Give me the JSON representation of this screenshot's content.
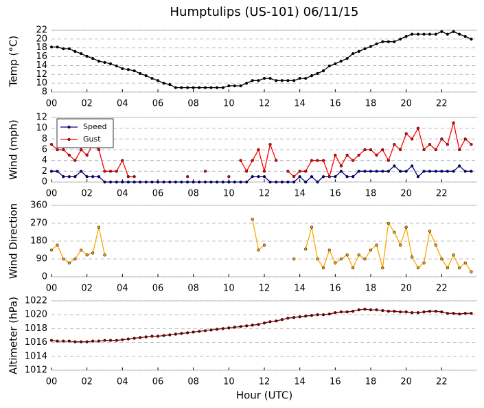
{
  "chart_data": [
    {
      "type": "line",
      "title": "Humptulips (US-101) 06/11/15",
      "ylabel": "Temp (°C)",
      "x": [
        0,
        0.33,
        0.67,
        1,
        1.33,
        1.67,
        2,
        2.33,
        2.67,
        3,
        3.33,
        3.67,
        4,
        4.33,
        4.67,
        5,
        5.33,
        5.67,
        6,
        6.33,
        6.67,
        7,
        7.33,
        7.67,
        8,
        8.33,
        8.67,
        9,
        9.33,
        9.67,
        10,
        10.33,
        10.67,
        11,
        11.33,
        11.67,
        12,
        12.33,
        12.67,
        13,
        13.33,
        13.67,
        14,
        14.33,
        14.67,
        15,
        15.33,
        15.67,
        16,
        16.33,
        16.67,
        17,
        17.33,
        17.67,
        18,
        18.33,
        18.67,
        19,
        19.33,
        19.67,
        20,
        20.33,
        20.67,
        21,
        21.33,
        21.67,
        22,
        22.33,
        22.67,
        23,
        23.33,
        23.67
      ],
      "series": [
        {
          "name": "Temp",
          "color": "#000000",
          "values": [
            18.2,
            18.2,
            17.8,
            17.8,
            17.2,
            16.7,
            16.1,
            15.6,
            15.0,
            14.7,
            14.4,
            13.9,
            13.3,
            13.1,
            12.8,
            12.2,
            11.7,
            11.1,
            10.6,
            10.0,
            9.7,
            9.0,
            9.0,
            9.0,
            9.0,
            9.0,
            9.0,
            9.0,
            9.0,
            9.0,
            9.4,
            9.4,
            9.4,
            10.0,
            10.6,
            10.6,
            11.1,
            11.1,
            10.6,
            10.6,
            10.6,
            10.6,
            11.1,
            11.1,
            11.7,
            12.2,
            12.8,
            13.9,
            14.4,
            15.0,
            15.6,
            16.7,
            17.2,
            17.8,
            18.3,
            18.9,
            19.4,
            19.4,
            19.4,
            20.0,
            20.6,
            21.1,
            21.1,
            21.1,
            21.1,
            21.1,
            21.7,
            21.1,
            21.7,
            21.1,
            20.6,
            20.0
          ]
        }
      ],
      "xlim": [
        0,
        24
      ],
      "xticks": [
        {
          "value": 0,
          "label": "00"
        },
        {
          "value": 2,
          "label": "02"
        },
        {
          "value": 4,
          "label": "04"
        },
        {
          "value": 6,
          "label": "06"
        },
        {
          "value": 8,
          "label": "08"
        },
        {
          "value": 10,
          "label": "10"
        },
        {
          "value": 12,
          "label": "12"
        },
        {
          "value": 14,
          "label": "14"
        },
        {
          "value": 16,
          "label": "16"
        },
        {
          "value": 18,
          "label": "18"
        },
        {
          "value": 20,
          "label": "20"
        },
        {
          "value": 22,
          "label": "22"
        }
      ],
      "ylim": [
        8,
        22
      ],
      "yticks": [
        8,
        10,
        12,
        14,
        16,
        18,
        20,
        22
      ],
      "grid": true
    },
    {
      "type": "line",
      "ylabel": "Wind (mph)",
      "legend": "upper left",
      "x": [
        0,
        0.33,
        0.67,
        1,
        1.33,
        1.67,
        2,
        2.33,
        2.67,
        3,
        3.33,
        3.67,
        4,
        4.33,
        4.67,
        5,
        5.33,
        5.67,
        6,
        6.33,
        6.67,
        7,
        7.33,
        7.67,
        8,
        8.33,
        8.67,
        9,
        9.33,
        9.67,
        10,
        10.33,
        10.67,
        11,
        11.33,
        11.67,
        12,
        12.33,
        12.67,
        13,
        13.33,
        13.67,
        14,
        14.33,
        14.67,
        15,
        15.33,
        15.67,
        16,
        16.33,
        16.67,
        17,
        17.33,
        17.67,
        18,
        18.33,
        18.67,
        19,
        19.33,
        19.67,
        20,
        20.33,
        20.67,
        21,
        21.33,
        21.67,
        22,
        22.33,
        22.67,
        23,
        23.33,
        23.67
      ],
      "series": [
        {
          "name": "Speed",
          "color": "#00008b",
          "values": [
            2,
            2,
            1,
            1,
            1,
            2,
            1,
            1,
            1,
            0,
            0,
            0,
            0,
            0,
            0,
            0,
            0,
            0,
            0,
            0,
            0,
            0,
            0,
            0,
            0,
            0,
            0,
            0,
            0,
            0,
            0,
            0,
            0,
            0,
            1,
            1,
            1,
            0,
            0,
            0,
            0,
            0,
            1,
            0,
            1,
            0,
            1,
            1,
            1,
            2,
            1,
            1,
            2,
            2,
            2,
            2,
            2,
            2,
            3,
            2,
            2,
            3,
            1,
            2,
            2,
            2,
            2,
            2,
            2,
            3,
            2,
            2
          ]
        },
        {
          "name": "Gust",
          "color": "#ff0000",
          "values": [
            7,
            6,
            6,
            5,
            4,
            6,
            5,
            7,
            6,
            2,
            2,
            2,
            4,
            1,
            1,
            null,
            null,
            null,
            null,
            null,
            null,
            null,
            null,
            1,
            null,
            null,
            2,
            null,
            null,
            null,
            1,
            null,
            4,
            2,
            4,
            6,
            2,
            7,
            4,
            null,
            2,
            1,
            2,
            2,
            4,
            4,
            4,
            1,
            5,
            3,
            5,
            4,
            5,
            6,
            6,
            5,
            6,
            4,
            7,
            6,
            9,
            8,
            10,
            6,
            7,
            6,
            8,
            7,
            11,
            6,
            8,
            7
          ]
        }
      ],
      "xlim": [
        0,
        24
      ],
      "xticks": [
        {
          "value": 0,
          "label": "00"
        },
        {
          "value": 2,
          "label": "02"
        },
        {
          "value": 4,
          "label": "04"
        },
        {
          "value": 6,
          "label": "06"
        },
        {
          "value": 8,
          "label": "08"
        },
        {
          "value": 10,
          "label": "10"
        },
        {
          "value": 12,
          "label": "12"
        },
        {
          "value": 14,
          "label": "14"
        },
        {
          "value": 16,
          "label": "16"
        },
        {
          "value": 18,
          "label": "18"
        },
        {
          "value": 20,
          "label": "20"
        },
        {
          "value": 22,
          "label": "22"
        }
      ],
      "ylim": [
        0,
        12
      ],
      "yticks": [
        0,
        2,
        4,
        6,
        8,
        10,
        12
      ],
      "grid": true
    },
    {
      "type": "line",
      "ylabel": "Wind Direction",
      "x": [
        0,
        0.33,
        0.67,
        1,
        1.33,
        1.67,
        2,
        2.33,
        2.67,
        3,
        3.33,
        3.67,
        4,
        4.33,
        4.67,
        5,
        5.33,
        5.67,
        6,
        6.33,
        6.67,
        7,
        7.33,
        7.67,
        8,
        8.33,
        8.67,
        9,
        9.33,
        9.67,
        10,
        10.33,
        10.67,
        11,
        11.33,
        11.67,
        12,
        12.33,
        12.67,
        13,
        13.33,
        13.67,
        14,
        14.33,
        14.67,
        15,
        15.33,
        15.67,
        16,
        16.33,
        16.67,
        17,
        17.33,
        17.67,
        18,
        18.33,
        18.67,
        19,
        19.33,
        19.67,
        20,
        20.33,
        20.67,
        21,
        21.33,
        21.67,
        22,
        22.33,
        22.67,
        23,
        23.33,
        23.67
      ],
      "series": [
        {
          "name": "Direction",
          "color": "#ffa500",
          "values": [
            135,
            160,
            90,
            70,
            90,
            135,
            110,
            120,
            250,
            110,
            null,
            null,
            null,
            null,
            null,
            null,
            null,
            null,
            null,
            null,
            null,
            null,
            null,
            null,
            null,
            null,
            null,
            null,
            null,
            null,
            null,
            null,
            null,
            null,
            290,
            135,
            160,
            null,
            null,
            null,
            null,
            90,
            null,
            140,
            250,
            90,
            45,
            135,
            70,
            90,
            110,
            45,
            110,
            90,
            135,
            160,
            45,
            270,
            225,
            160,
            250,
            100,
            45,
            70,
            230,
            160,
            90,
            45,
            110,
            45,
            70,
            25
          ]
        }
      ],
      "xlim": [
        0,
        24
      ],
      "xticks": [
        {
          "value": 0,
          "label": "00"
        },
        {
          "value": 2,
          "label": "02"
        },
        {
          "value": 4,
          "label": "04"
        },
        {
          "value": 6,
          "label": "06"
        },
        {
          "value": 8,
          "label": "08"
        },
        {
          "value": 10,
          "label": "10"
        },
        {
          "value": 12,
          "label": "12"
        },
        {
          "value": 14,
          "label": "14"
        },
        {
          "value": 16,
          "label": "16"
        },
        {
          "value": 18,
          "label": "18"
        },
        {
          "value": 20,
          "label": "20"
        },
        {
          "value": 22,
          "label": "22"
        }
      ],
      "ylim": [
        0,
        360
      ],
      "yticks": [
        0,
        90,
        180,
        270,
        360
      ],
      "grid": true
    },
    {
      "type": "line",
      "ylabel": "Altimeter (hPa)",
      "xlabel": "Hour (UTC)",
      "x": [
        0,
        0.33,
        0.67,
        1,
        1.33,
        1.67,
        2,
        2.33,
        2.67,
        3,
        3.33,
        3.67,
        4,
        4.33,
        4.67,
        5,
        5.33,
        5.67,
        6,
        6.33,
        6.67,
        7,
        7.33,
        7.67,
        8,
        8.33,
        8.67,
        9,
        9.33,
        9.67,
        10,
        10.33,
        10.67,
        11,
        11.33,
        11.67,
        12,
        12.33,
        12.67,
        13,
        13.33,
        13.67,
        14,
        14.33,
        14.67,
        15,
        15.33,
        15.67,
        16,
        16.33,
        16.67,
        17,
        17.33,
        17.67,
        18,
        18.33,
        18.67,
        19,
        19.33,
        19.67,
        20,
        20.33,
        20.67,
        21,
        21.33,
        21.67,
        22,
        22.33,
        22.67,
        23,
        23.33,
        23.67
      ],
      "series": [
        {
          "name": "Altimeter",
          "color": "#8b0000",
          "values": [
            1016.3,
            1016.2,
            1016.2,
            1016.2,
            1016.1,
            1016.1,
            1016.1,
            1016.2,
            1016.2,
            1016.3,
            1016.3,
            1016.3,
            1016.4,
            1016.5,
            1016.6,
            1016.7,
            1016.8,
            1016.9,
            1016.9,
            1017.0,
            1017.1,
            1017.2,
            1017.3,
            1017.4,
            1017.5,
            1017.6,
            1017.7,
            1017.8,
            1017.9,
            1018.0,
            1018.1,
            1018.2,
            1018.3,
            1018.4,
            1018.5,
            1018.6,
            1018.8,
            1019.0,
            1019.1,
            1019.3,
            1019.5,
            1019.6,
            1019.7,
            1019.8,
            1019.9,
            1020.0,
            1020.0,
            1020.1,
            1020.3,
            1020.4,
            1020.4,
            1020.5,
            1020.7,
            1020.8,
            1020.7,
            1020.7,
            1020.6,
            1020.5,
            1020.5,
            1020.4,
            1020.4,
            1020.3,
            1020.3,
            1020.4,
            1020.5,
            1020.5,
            1020.4,
            1020.2,
            1020.2,
            1020.1,
            1020.2,
            1020.2
          ]
        }
      ],
      "xlim": [
        0,
        24
      ],
      "xticks": [
        {
          "value": 0,
          "label": "00"
        },
        {
          "value": 2,
          "label": "02"
        },
        {
          "value": 4,
          "label": "04"
        },
        {
          "value": 6,
          "label": "06"
        },
        {
          "value": 8,
          "label": "08"
        },
        {
          "value": 10,
          "label": "10"
        },
        {
          "value": 12,
          "label": "12"
        },
        {
          "value": 14,
          "label": "14"
        },
        {
          "value": 16,
          "label": "16"
        },
        {
          "value": 18,
          "label": "18"
        },
        {
          "value": 20,
          "label": "20"
        },
        {
          "value": 22,
          "label": "22"
        }
      ],
      "ylim": [
        1012,
        1022
      ],
      "yticks": [
        1012,
        1014,
        1016,
        1018,
        1020,
        1022
      ],
      "grid": true
    }
  ]
}
